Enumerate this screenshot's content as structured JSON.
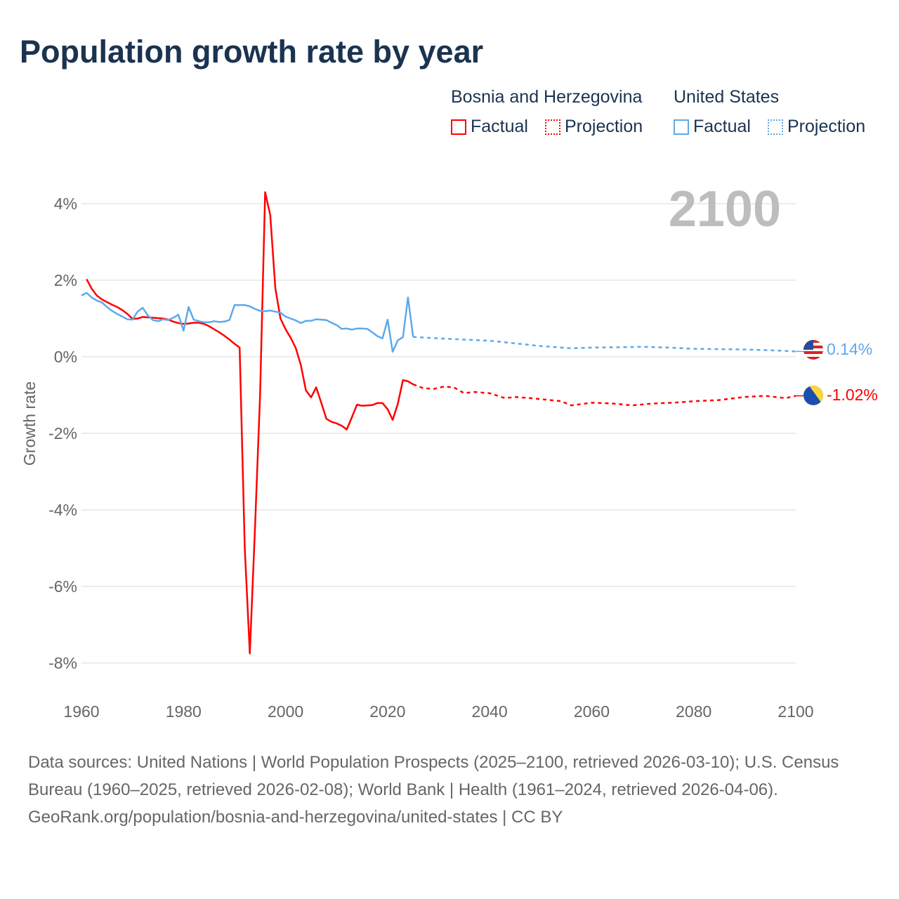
{
  "chart_data": {
    "type": "line",
    "title": "Population growth rate by year",
    "ylabel": "Growth rate",
    "xlabel": "",
    "xlim": [
      1960,
      2100
    ],
    "ylim": [
      -8.9,
      4.5
    ],
    "x_ticks": [
      "1960",
      "1980",
      "2000",
      "2020",
      "2040",
      "2060",
      "2080",
      "2100"
    ],
    "x_tick_values": [
      1960,
      1980,
      2000,
      2020,
      2040,
      2060,
      2080,
      2100
    ],
    "y_ticks": [
      "4%",
      "2%",
      "0%",
      "-2%",
      "-4%",
      "-6%",
      "-8%"
    ],
    "y_tick_values": [
      4,
      2,
      0,
      -2,
      -4,
      -6,
      -8
    ],
    "grid": true,
    "current_year_label": "2100",
    "legend": {
      "placement": "top-right",
      "groups": [
        {
          "name": "Bosnia and Herzegovina",
          "items": [
            "Factual",
            "Projection"
          ]
        },
        {
          "name": "United States",
          "items": [
            "Factual",
            "Projection"
          ]
        }
      ]
    },
    "series": [
      {
        "name": "Bosnia and Herzegovina",
        "color": "#ff0000",
        "end_label": "-1.02%",
        "factual": {
          "x": [
            1961,
            1962,
            1963,
            1964,
            1965,
            1966,
            1967,
            1968,
            1969,
            1970,
            1971,
            1972,
            1973,
            1974,
            1975,
            1976,
            1977,
            1978,
            1979,
            1980,
            1981,
            1982,
            1983,
            1984,
            1985,
            1986,
            1987,
            1988,
            1989,
            1990,
            1991,
            1992,
            1993,
            1994,
            1995,
            1996,
            1997,
            1998,
            1999,
            2000,
            2001,
            2002,
            2003,
            2004,
            2005,
            2006,
            2007,
            2008,
            2009,
            2010,
            2011,
            2012,
            2013,
            2014,
            2015,
            2016,
            2017,
            2018,
            2019,
            2020,
            2021,
            2022,
            2023,
            2024,
            2025
          ],
          "y": [
            2.03,
            1.78,
            1.6,
            1.5,
            1.43,
            1.36,
            1.3,
            1.22,
            1.12,
            0.99,
            1.0,
            1.04,
            1.03,
            1.02,
            1.01,
            1.0,
            0.97,
            0.92,
            0.88,
            0.86,
            0.87,
            0.89,
            0.89,
            0.86,
            0.8,
            0.72,
            0.64,
            0.55,
            0.45,
            0.34,
            0.24,
            -5.0,
            -7.75,
            -4.5,
            -1.0,
            4.3,
            3.7,
            1.8,
            1.0,
            0.72,
            0.5,
            0.23,
            -0.22,
            -0.88,
            -1.06,
            -0.8,
            -1.2,
            -1.62,
            -1.7,
            -1.74,
            -1.8,
            -1.9,
            -1.58,
            -1.25,
            -1.28,
            -1.27,
            -1.26,
            -1.21,
            -1.21,
            -1.37,
            -1.65,
            -1.23,
            -0.61,
            -0.64,
            -0.72
          ]
        },
        "projection": {
          "x": [
            2025,
            2027,
            2029,
            2031,
            2033,
            2035,
            2037,
            2040,
            2043,
            2045,
            2048,
            2051,
            2054,
            2056,
            2060,
            2064,
            2068,
            2072,
            2076,
            2080,
            2085,
            2090,
            2094,
            2098,
            2100
          ],
          "y": [
            -0.72,
            -0.82,
            -0.84,
            -0.78,
            -0.8,
            -0.95,
            -0.92,
            -0.95,
            -1.08,
            -1.05,
            -1.08,
            -1.12,
            -1.16,
            -1.27,
            -1.2,
            -1.22,
            -1.27,
            -1.22,
            -1.2,
            -1.16,
            -1.13,
            -1.05,
            -1.02,
            -1.08,
            -1.02
          ]
        }
      },
      {
        "name": "United States",
        "color": "#5ea9ea",
        "end_label": "0.14%",
        "factual": {
          "x": [
            1960,
            1961,
            1962,
            1963,
            1964,
            1965,
            1966,
            1967,
            1968,
            1969,
            1970,
            1971,
            1972,
            1973,
            1974,
            1975,
            1976,
            1977,
            1978,
            1979,
            1980,
            1981,
            1982,
            1983,
            1984,
            1985,
            1986,
            1987,
            1988,
            1989,
            1990,
            1991,
            1992,
            1993,
            1994,
            1995,
            1996,
            1997,
            1998,
            1999,
            2000,
            2001,
            2002,
            2003,
            2004,
            2005,
            2006,
            2007,
            2008,
            2009,
            2010,
            2011,
            2012,
            2013,
            2014,
            2015,
            2016,
            2017,
            2018,
            2019,
            2020,
            2021,
            2022,
            2023,
            2024,
            2025
          ],
          "y": [
            1.6,
            1.67,
            1.55,
            1.47,
            1.42,
            1.3,
            1.2,
            1.12,
            1.05,
            0.98,
            0.97,
            1.18,
            1.28,
            1.08,
            0.96,
            0.93,
            0.98,
            0.96,
            1.02,
            1.1,
            0.68,
            1.3,
            0.97,
            0.93,
            0.9,
            0.9,
            0.93,
            0.91,
            0.92,
            0.96,
            1.35,
            1.35,
            1.35,
            1.32,
            1.25,
            1.2,
            1.19,
            1.21,
            1.18,
            1.15,
            1.05,
            1.0,
            0.95,
            0.88,
            0.94,
            0.94,
            0.98,
            0.97,
            0.96,
            0.89,
            0.83,
            0.73,
            0.74,
            0.71,
            0.74,
            0.74,
            0.73,
            0.64,
            0.54,
            0.48,
            0.97,
            0.13,
            0.43,
            0.51,
            1.55,
            0.52
          ]
        },
        "projection": {
          "x": [
            2025,
            2030,
            2035,
            2040,
            2045,
            2050,
            2056,
            2060,
            2065,
            2070,
            2075,
            2080,
            2085,
            2090,
            2095,
            2100
          ],
          "y": [
            0.52,
            0.48,
            0.45,
            0.42,
            0.35,
            0.28,
            0.22,
            0.24,
            0.25,
            0.26,
            0.24,
            0.21,
            0.2,
            0.19,
            0.17,
            0.14
          ]
        }
      }
    ]
  },
  "footer": {
    "sources": "Data sources: United Nations | World Population Prospects (2025–2100, retrieved 2026-03-10); U.S. Census Bureau (1960–2025, retrieved 2026-02-08); World Bank | Health (1961–2024, retrieved 2026-04-06).",
    "credit": "GeoRank.org/population/bosnia-and-herzegovina/united-states | CC BY"
  }
}
